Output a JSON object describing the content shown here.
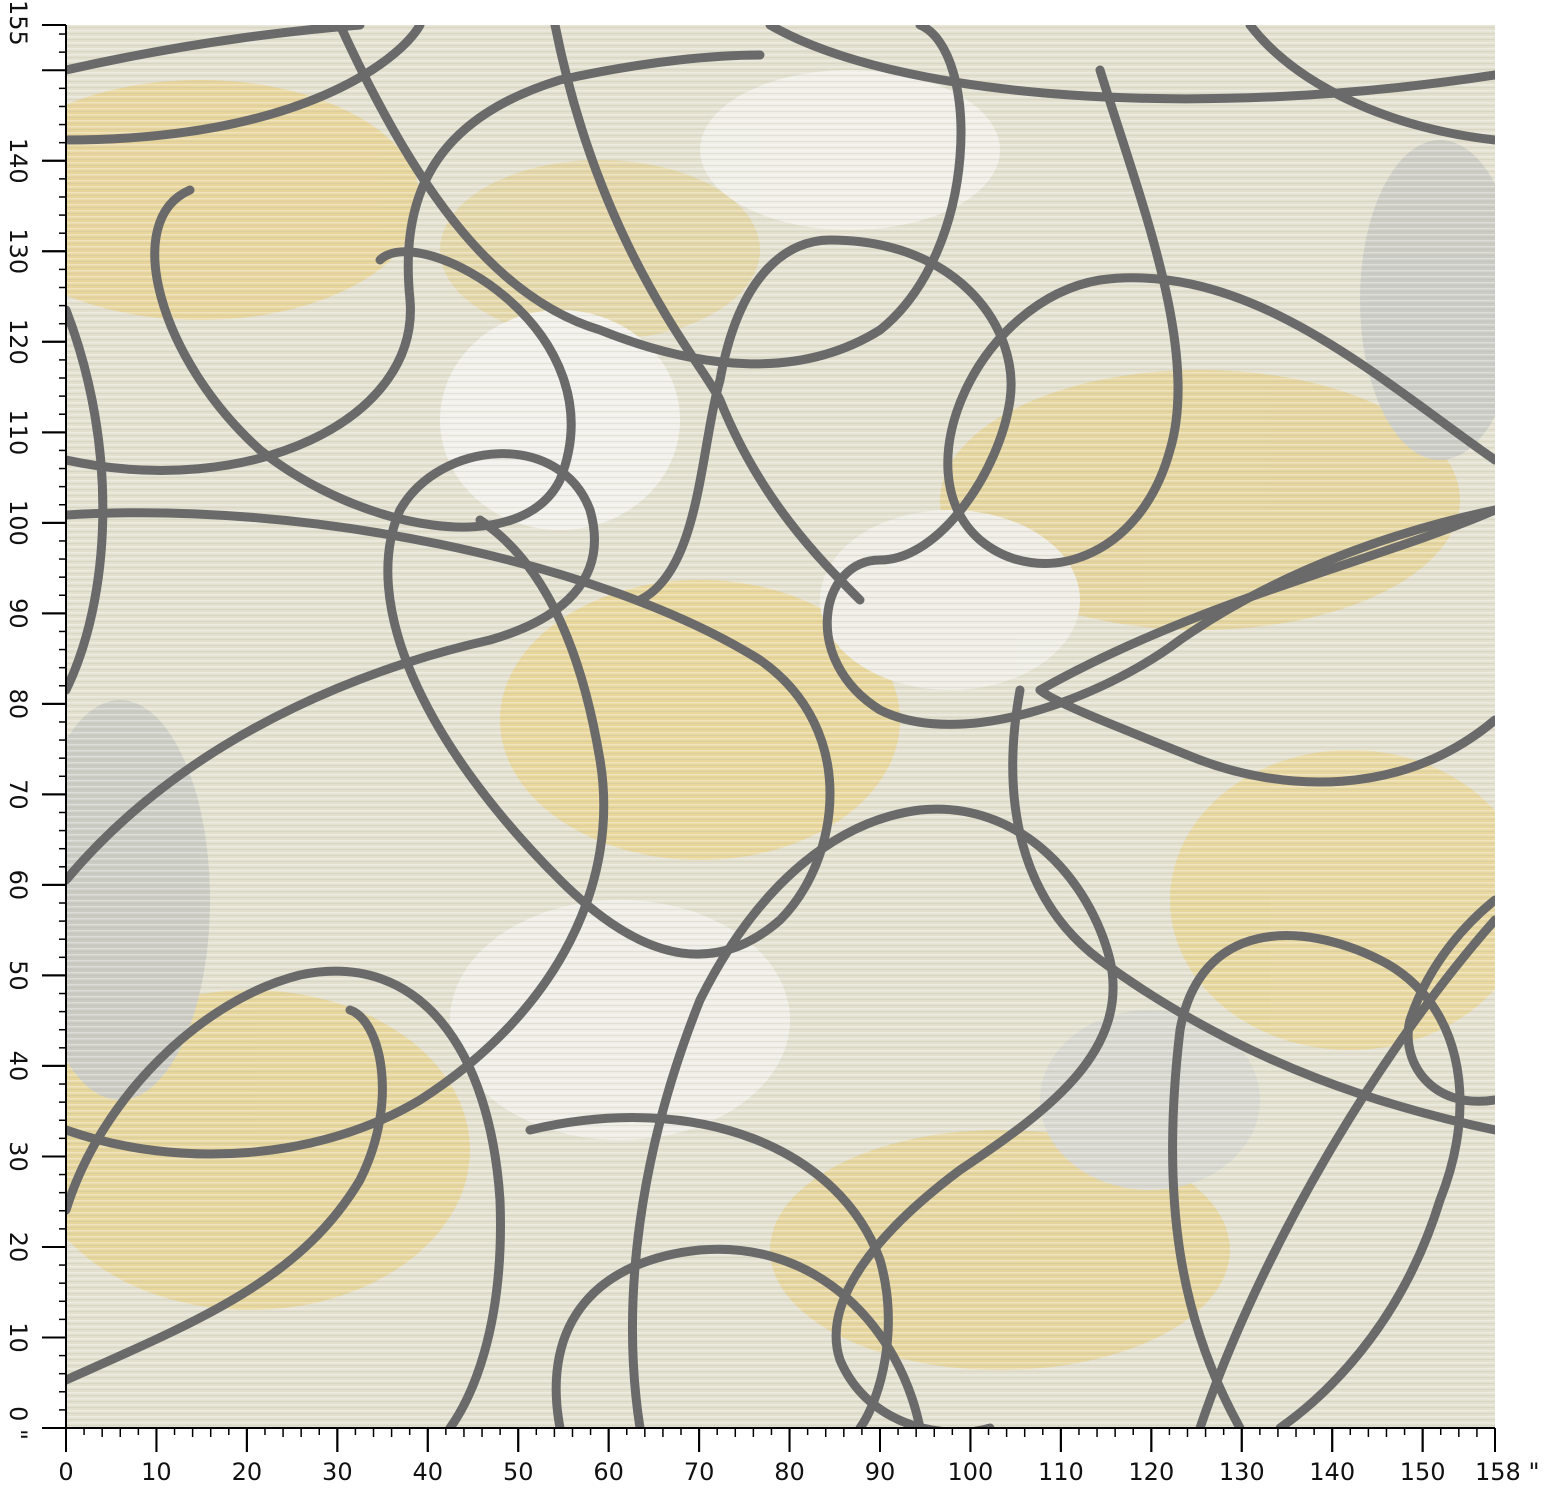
{
  "ruler": {
    "x": {
      "lim": [
        0,
        158
      ],
      "ticks": [
        0,
        10,
        20,
        30,
        40,
        50,
        60,
        70,
        80,
        90,
        100,
        110,
        120,
        130,
        140,
        150,
        {
          "value": 158,
          "label": "158 \""
        }
      ]
    },
    "y": {
      "lim": [
        0,
        155
      ],
      "ticks": [
        {
          "value": 0,
          "label": "0 \""
        },
        10,
        20,
        30,
        40,
        50,
        60,
        70,
        80,
        90,
        100,
        110,
        120,
        130,
        140,
        155
      ]
    }
  }
}
